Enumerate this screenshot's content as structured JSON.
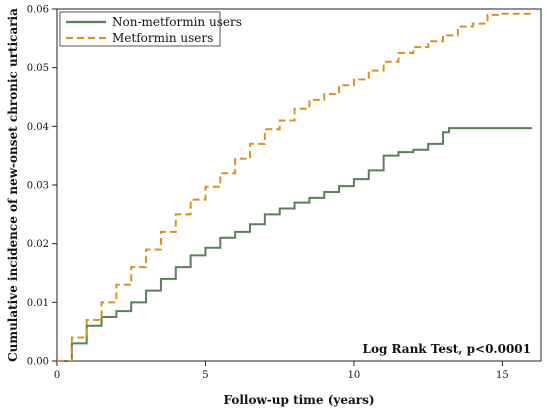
{
  "chart_data": {
    "type": "line",
    "title": "",
    "xlabel": "Follow-up time (years)",
    "ylabel": "Cumulative incidence of new-onset chronic urticaria",
    "xlim": [
      0,
      16.3
    ],
    "ylim": [
      0,
      0.06
    ],
    "xticks": [
      0,
      5,
      10,
      15
    ],
    "yticks": [
      0.0,
      0.01,
      0.02,
      0.03,
      0.04,
      0.05,
      0.06
    ],
    "ytick_labels": [
      "0.00",
      "0.01",
      "0.02",
      "0.03",
      "0.04",
      "0.05",
      "0.06"
    ],
    "grid": false,
    "legend_position": "top-left",
    "annotation": "Log Rank Test, p<0.0001",
    "series": [
      {
        "name": "Non-metformin users",
        "color": "#5b7e5b",
        "style": "solid",
        "x": [
          0,
          0.5,
          1.0,
          1.5,
          2.0,
          2.5,
          3.0,
          3.5,
          4.0,
          4.5,
          5.0,
          5.5,
          6.0,
          6.5,
          7.0,
          7.5,
          8.0,
          8.5,
          9.0,
          9.5,
          10.0,
          10.5,
          11.0,
          11.5,
          12.0,
          12.5,
          13.0,
          13.2,
          14.0,
          15.0,
          16.0
        ],
        "y": [
          0,
          0.003,
          0.006,
          0.0075,
          0.0085,
          0.01,
          0.012,
          0.014,
          0.016,
          0.018,
          0.0193,
          0.021,
          0.022,
          0.0233,
          0.025,
          0.026,
          0.027,
          0.0278,
          0.0288,
          0.0298,
          0.031,
          0.0325,
          0.035,
          0.0356,
          0.036,
          0.037,
          0.039,
          0.0397,
          0.0397,
          0.0397,
          0.0397
        ]
      },
      {
        "name": "Metformin users",
        "color": "#d4941e",
        "style": "dashed",
        "x": [
          0,
          0.5,
          1.0,
          1.5,
          2.0,
          2.5,
          3.0,
          3.5,
          4.0,
          4.5,
          5.0,
          5.5,
          6.0,
          6.5,
          7.0,
          7.5,
          8.0,
          8.5,
          9.0,
          9.5,
          10.0,
          10.5,
          11.0,
          11.5,
          12.0,
          12.5,
          13.0,
          13.5,
          14.0,
          14.5,
          15.0,
          16.0
        ],
        "y": [
          0,
          0.004,
          0.007,
          0.01,
          0.013,
          0.016,
          0.019,
          0.022,
          0.025,
          0.0275,
          0.0297,
          0.032,
          0.0345,
          0.037,
          0.0395,
          0.041,
          0.043,
          0.0445,
          0.0455,
          0.047,
          0.048,
          0.0495,
          0.051,
          0.0525,
          0.0535,
          0.0545,
          0.0555,
          0.057,
          0.0575,
          0.059,
          0.0592,
          0.0592
        ]
      }
    ]
  }
}
